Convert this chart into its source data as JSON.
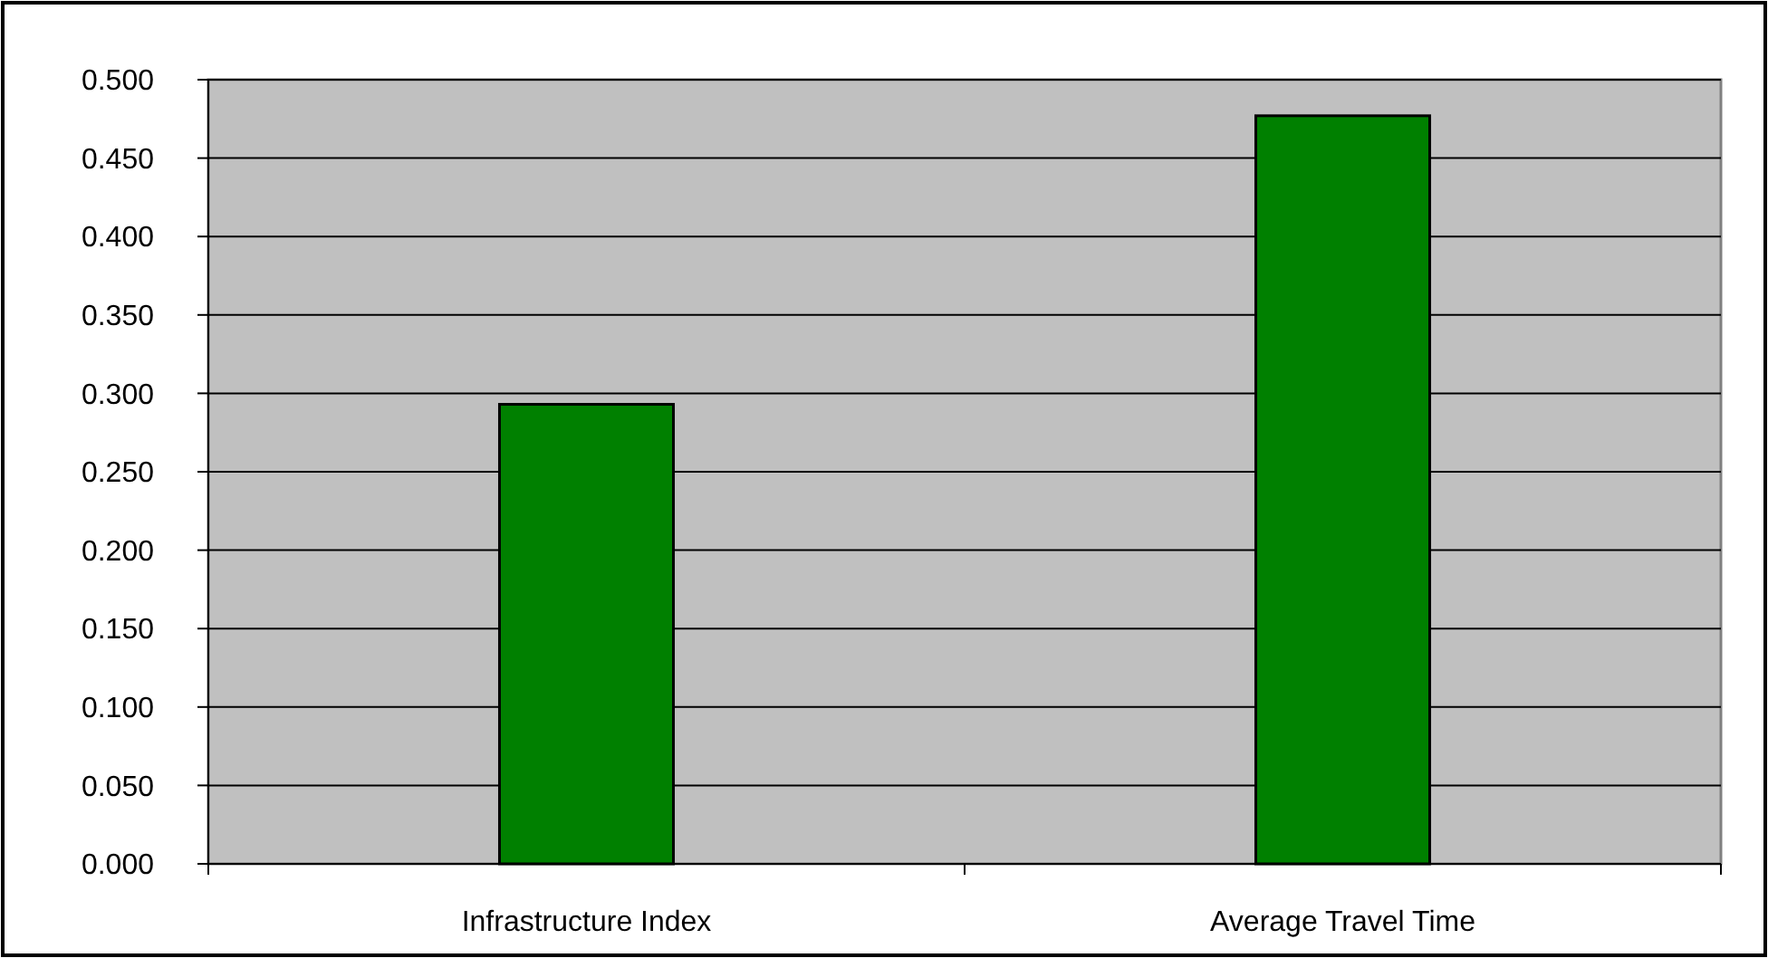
{
  "chart_data": {
    "type": "bar",
    "categories": [
      "Infrastructure Index",
      "Average Travel Time"
    ],
    "values": [
      0.293,
      0.477
    ],
    "color": "#008000",
    "ylim": [
      0,
      0.5
    ],
    "yticks": [
      {
        "value": 0,
        "label": "0.000"
      },
      {
        "value": 0.05,
        "label": "0.050"
      },
      {
        "value": 0.1,
        "label": "0.100"
      },
      {
        "value": 0.15,
        "label": "0.150"
      },
      {
        "value": 0.2,
        "label": "0.200"
      },
      {
        "value": 0.25,
        "label": "0.250"
      },
      {
        "value": 0.3,
        "label": "0.300"
      },
      {
        "value": 0.35,
        "label": "0.350"
      },
      {
        "value": 0.4,
        "label": "0.400"
      },
      {
        "value": 0.45,
        "label": "0.450"
      },
      {
        "value": 0.5,
        "label": "0.500"
      }
    ],
    "grid": "y"
  }
}
